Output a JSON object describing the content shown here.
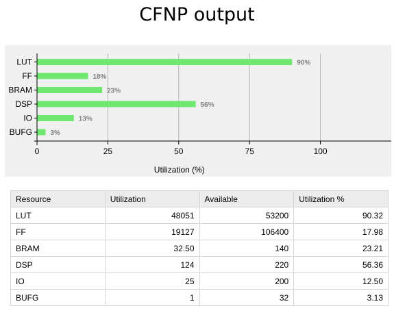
{
  "title": "CFNP output",
  "chart_data": {
    "type": "bar",
    "orientation": "horizontal",
    "categories": [
      "LUT",
      "FF",
      "BRAM",
      "DSP",
      "IO",
      "BUFG"
    ],
    "values": [
      90,
      18,
      23,
      56,
      13,
      3
    ],
    "data_labels": [
      "90%",
      "18%",
      "23%",
      "56%",
      "13%",
      "3%"
    ],
    "xlabel": "Utilization (%)",
    "ylabel": "",
    "xlim": [
      0,
      125
    ],
    "x_ticks": [
      0,
      25,
      50,
      75,
      100
    ],
    "x_tick_labels": [
      "0",
      "25",
      "50",
      "75",
      "100"
    ],
    "grid": true,
    "legend": "none",
    "bar_color": "#6ee86e",
    "background_color": "#f0f0f0",
    "grid_color": "#b4b4b4",
    "label_color": "#808080"
  },
  "table": {
    "headers": [
      "Resource",
      "Utilization",
      "Available",
      "Utilization %"
    ],
    "rows": [
      [
        "LUT",
        "48051",
        "53200",
        "90.32"
      ],
      [
        "FF",
        "19127",
        "106400",
        "17.98"
      ],
      [
        "BRAM",
        "32.50",
        "140",
        "23.21"
      ],
      [
        "DSP",
        "124",
        "220",
        "56.36"
      ],
      [
        "IO",
        "25",
        "200",
        "12.50"
      ],
      [
        "BUFG",
        "1",
        "32",
        "3.13"
      ]
    ]
  }
}
